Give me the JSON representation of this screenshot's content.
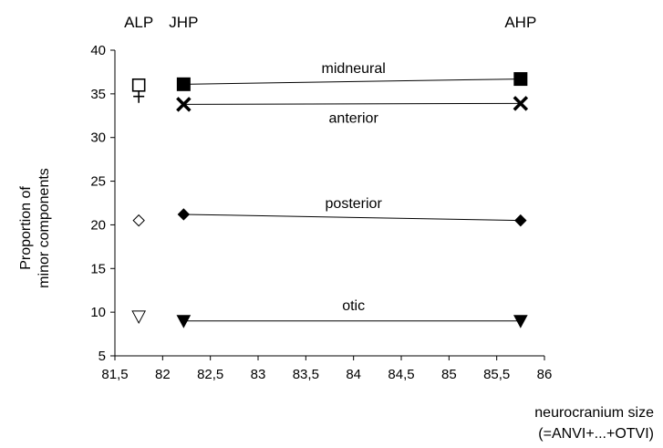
{
  "chart_data": {
    "type": "scatter",
    "xlabel_line1": "neurocranium size",
    "xlabel_line2": "(=ANVI+...+OTVI)",
    "ylabel_line1": "Proportion of",
    "ylabel_line2": "minor components",
    "xlim": [
      81.5,
      86
    ],
    "ylim": [
      5,
      40
    ],
    "xticks": [
      81.5,
      82,
      82.5,
      83,
      83.5,
      84,
      84.5,
      85,
      85.5,
      86
    ],
    "xtick_labels": [
      "81,5",
      "82",
      "82,5",
      "83",
      "83,5",
      "84",
      "84,5",
      "85",
      "85,5",
      "86"
    ],
    "yticks": [
      5,
      10,
      15,
      20,
      25,
      30,
      35,
      40
    ],
    "ytick_labels": [
      "5",
      "10",
      "15",
      "20",
      "25",
      "30",
      "35",
      "40"
    ],
    "grid": false,
    "groups": [
      {
        "label": "ALP",
        "x": 81.75
      },
      {
        "label": "JHP",
        "x": 82.22
      },
      {
        "label": "AHP",
        "x": 85.75
      }
    ],
    "series": [
      {
        "name": "midneural",
        "marker": "square",
        "points": [
          {
            "x": 81.75,
            "y": 36.0,
            "filled": false
          },
          {
            "x": 82.22,
            "y": 36.1,
            "filled": true
          },
          {
            "x": 85.75,
            "y": 36.7,
            "filled": true
          }
        ],
        "label_pos": {
          "x": 84.0,
          "y": 37.4
        }
      },
      {
        "name": "anterior",
        "marker": "cross",
        "points": [
          {
            "x": 81.75,
            "y": 34.7,
            "filled": false
          },
          {
            "x": 82.22,
            "y": 33.8,
            "filled": true
          },
          {
            "x": 85.75,
            "y": 33.9,
            "filled": true
          }
        ],
        "label_pos": {
          "x": 84.0,
          "y": 31.7
        }
      },
      {
        "name": "posterior",
        "marker": "diamond",
        "points": [
          {
            "x": 81.75,
            "y": 20.5,
            "filled": false
          },
          {
            "x": 82.22,
            "y": 21.2,
            "filled": true
          },
          {
            "x": 85.75,
            "y": 20.5,
            "filled": true
          }
        ],
        "label_pos": {
          "x": 84.0,
          "y": 21.9
        }
      },
      {
        "name": "otic",
        "marker": "triangle-down",
        "points": [
          {
            "x": 81.75,
            "y": 9.5,
            "filled": false
          },
          {
            "x": 82.22,
            "y": 9.0,
            "filled": true
          },
          {
            "x": 85.75,
            "y": 9.0,
            "filled": true
          }
        ],
        "label_pos": {
          "x": 84.0,
          "y": 10.2
        }
      }
    ]
  }
}
